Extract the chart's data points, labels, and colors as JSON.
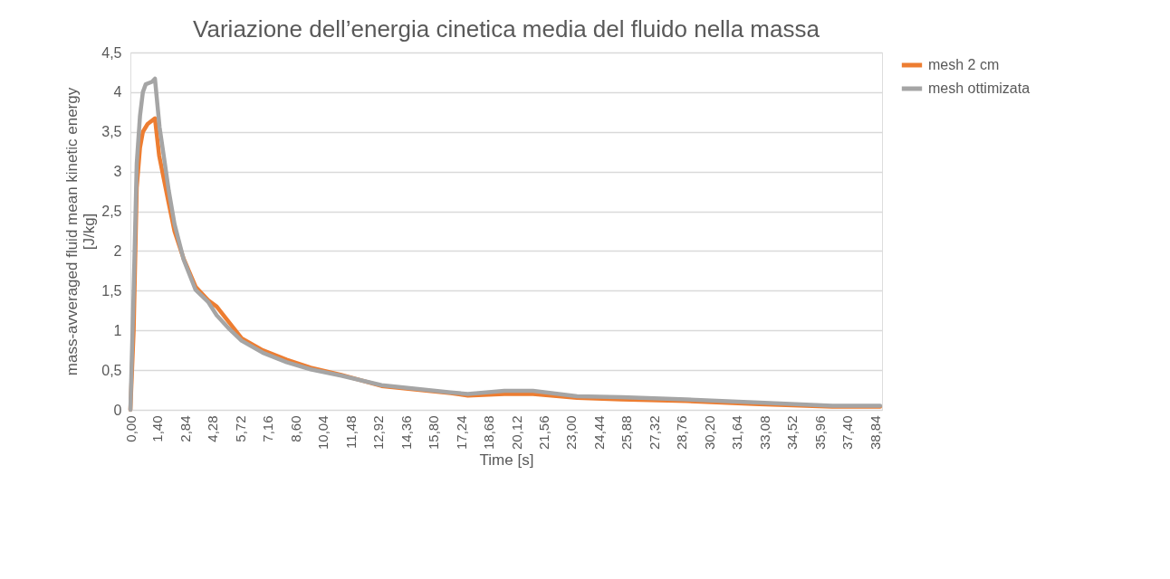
{
  "chart_data": {
    "type": "line",
    "title": "Variazione dell’energia cinetica media del fluido nella massa",
    "xlabel": "Time [s]",
    "ylabel": "mass-avveraged fluid mean kinetic energy [J/kg]",
    "xlim": [
      0,
      39.2
    ],
    "ylim": [
      0,
      4.5
    ],
    "xticks": [
      {
        "value": 0,
        "label": "0,00"
      },
      {
        "value": 1.4,
        "label": "1,40"
      },
      {
        "value": 2.84,
        "label": "2,84"
      },
      {
        "value": 4.28,
        "label": "4,28"
      },
      {
        "value": 5.72,
        "label": "5,72"
      },
      {
        "value": 7.16,
        "label": "7,16"
      },
      {
        "value": 8.6,
        "label": "8,60"
      },
      {
        "value": 10.04,
        "label": "10,04"
      },
      {
        "value": 11.48,
        "label": "11,48"
      },
      {
        "value": 12.92,
        "label": "12,92"
      },
      {
        "value": 14.36,
        "label": "14,36"
      },
      {
        "value": 15.8,
        "label": "15,80"
      },
      {
        "value": 17.24,
        "label": "17,24"
      },
      {
        "value": 18.68,
        "label": "18,68"
      },
      {
        "value": 20.12,
        "label": "20,12"
      },
      {
        "value": 21.56,
        "label": "21,56"
      },
      {
        "value": 23,
        "label": "23,00"
      },
      {
        "value": 24.44,
        "label": "24,44"
      },
      {
        "value": 25.88,
        "label": "25,88"
      },
      {
        "value": 27.32,
        "label": "27,32"
      },
      {
        "value": 28.76,
        "label": "28,76"
      },
      {
        "value": 30.2,
        "label": "30,20"
      },
      {
        "value": 31.64,
        "label": "31,64"
      },
      {
        "value": 33.08,
        "label": "33,08"
      },
      {
        "value": 34.52,
        "label": "34,52"
      },
      {
        "value": 35.96,
        "label": "35,96"
      },
      {
        "value": 37.4,
        "label": "37,40"
      },
      {
        "value": 38.84,
        "label": "38,84"
      }
    ],
    "yticks": [
      0,
      {
        "value": 0.5,
        "label": "0,5"
      },
      1,
      {
        "value": 1.5,
        "label": "1,5"
      },
      2,
      {
        "value": 2.5,
        "label": "2,5"
      },
      3,
      {
        "value": 3.5,
        "label": "3,5"
      },
      4,
      {
        "value": 4.5,
        "label": "4,5"
      }
    ],
    "grid": "y",
    "legend": "right",
    "marker": "none",
    "line_style": "solid",
    "series": [
      {
        "name": "mesh 2 cm",
        "color": "#ed7d31",
        "x": [
          0,
          0.17,
          0.33,
          0.5,
          0.65,
          0.9,
          1.28,
          1.5,
          1.75,
          2.0,
          2.3,
          2.78,
          3.4,
          4.05,
          4.5,
          5.15,
          5.8,
          6.9,
          8.15,
          9.4,
          11.0,
          13.1,
          16.7,
          17.6,
          19.5,
          21.0,
          23.3,
          25.6,
          29.0,
          32.8,
          36.6,
          39.1
        ],
        "values": [
          0,
          1.0,
          2.8,
          3.3,
          3.5,
          3.6,
          3.67,
          3.2,
          2.9,
          2.6,
          2.25,
          1.9,
          1.55,
          1.38,
          1.3,
          1.1,
          0.9,
          0.75,
          0.63,
          0.53,
          0.44,
          0.3,
          0.21,
          0.18,
          0.2,
          0.2,
          0.15,
          0.13,
          0.11,
          0.07,
          0.04,
          0.04
        ]
      },
      {
        "name": "mesh ottimizata",
        "color": "#a5a5a5",
        "x": [
          0,
          0.17,
          0.33,
          0.5,
          0.65,
          0.8,
          1.12,
          1.28,
          1.52,
          1.75,
          2.0,
          2.3,
          2.78,
          3.4,
          4.05,
          4.5,
          5.15,
          5.8,
          6.9,
          8.15,
          9.4,
          11.0,
          13.1,
          16.7,
          17.6,
          19.5,
          21.0,
          23.3,
          25.6,
          29.0,
          32.8,
          36.6,
          39.1
        ],
        "values": [
          0,
          1.5,
          3.1,
          3.7,
          4.0,
          4.1,
          4.13,
          4.17,
          3.56,
          3.18,
          2.76,
          2.34,
          1.89,
          1.51,
          1.36,
          1.19,
          1.02,
          0.87,
          0.72,
          0.6,
          0.51,
          0.43,
          0.31,
          0.22,
          0.2,
          0.24,
          0.24,
          0.17,
          0.16,
          0.13,
          0.09,
          0.05,
          0.05
        ]
      }
    ]
  }
}
